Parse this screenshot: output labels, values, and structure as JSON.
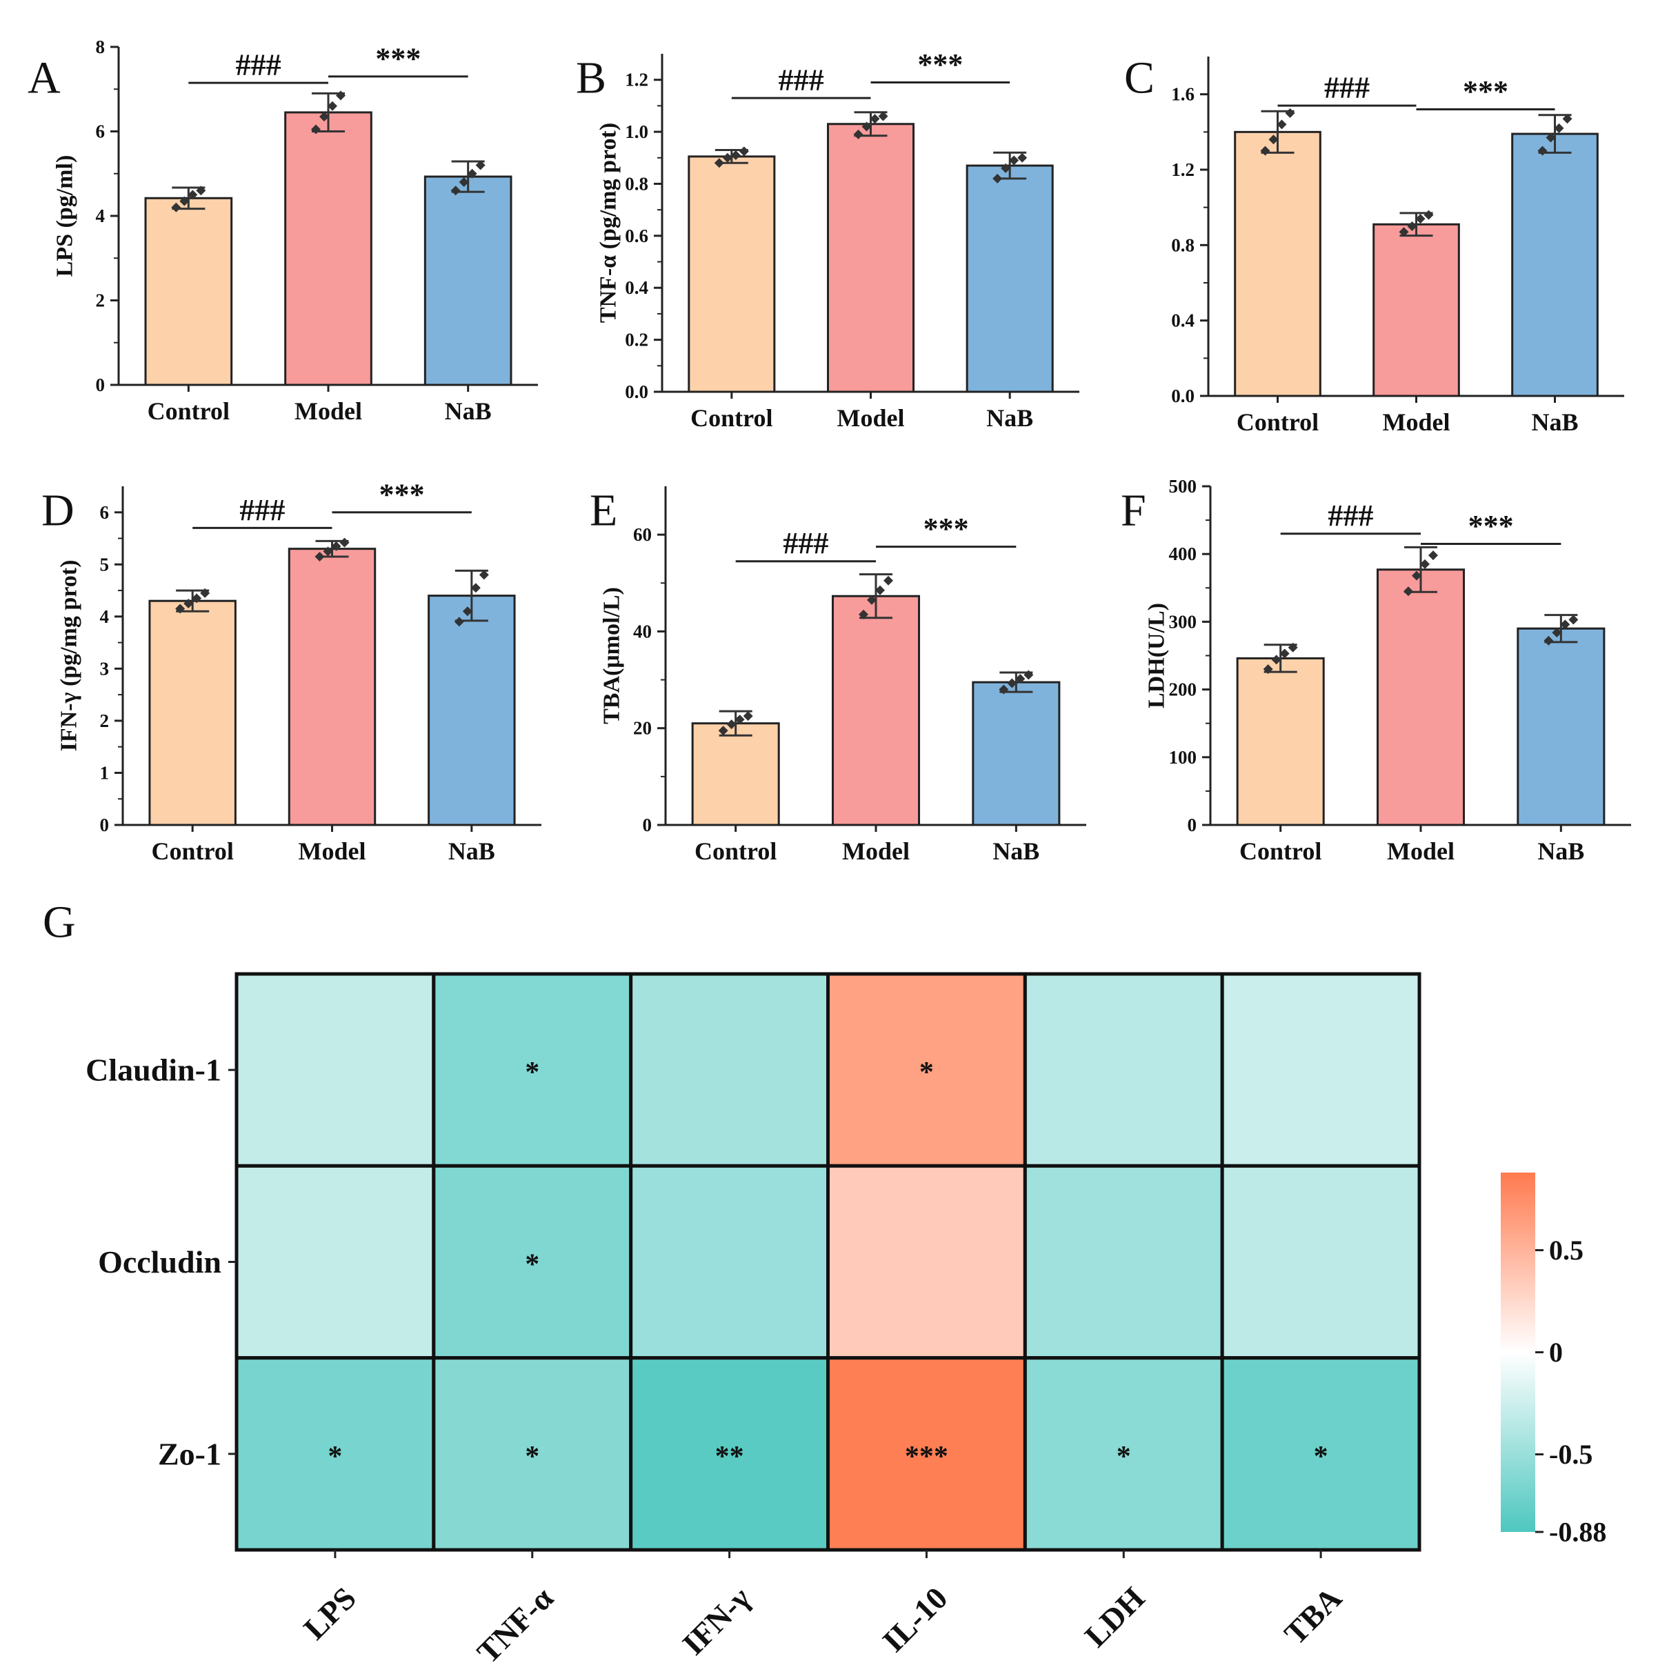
{
  "colors": {
    "control": "#fdd1aa",
    "model": "#f89b9b",
    "nab": "#7fb3dc",
    "outline": "#222222",
    "heat_negative": "#4ec7bf",
    "heat_zero": "#ffffff",
    "heat_positive": "#ff7a4f"
  },
  "chart_data": [
    {
      "panel": "A",
      "type": "bar",
      "categories": [
        "Control",
        "Model",
        "NaB"
      ],
      "values": [
        4.42,
        6.45,
        4.93
      ],
      "errors": [
        0.25,
        0.45,
        0.36
      ],
      "points": [
        [
          4.2,
          4.35,
          4.5,
          4.6
        ],
        [
          6.05,
          6.35,
          6.6,
          6.85
        ],
        [
          4.6,
          4.8,
          5.0,
          5.2
        ]
      ],
      "ylabel": "LPS (pg/ml)",
      "ylim": [
        0,
        8
      ],
      "yticks": [
        "0",
        "2",
        "4",
        "6",
        "8"
      ],
      "comparisons": [
        {
          "from": 0,
          "to": 1,
          "label": "###",
          "y": 7.15
        },
        {
          "from": 1,
          "to": 2,
          "label": "***",
          "y": 7.3
        }
      ]
    },
    {
      "panel": "B",
      "type": "bar",
      "categories": [
        "Control",
        "Model",
        "NaB"
      ],
      "values": [
        0.905,
        1.03,
        0.87
      ],
      "errors": [
        0.025,
        0.045,
        0.05
      ],
      "points": [
        [
          0.88,
          0.9,
          0.91,
          0.925
        ],
        [
          0.99,
          1.02,
          1.05,
          1.06
        ],
        [
          0.82,
          0.86,
          0.89,
          0.9
        ]
      ],
      "ylabel": "TNF-α (pg/mg prot)",
      "ylim": [
        0,
        1.3
      ],
      "yticks": [
        "0.0",
        "0.2",
        "0.4",
        "0.6",
        "0.8",
        "1.0",
        "1.2"
      ],
      "comparisons": [
        {
          "from": 0,
          "to": 1,
          "label": "###",
          "y": 1.13
        },
        {
          "from": 1,
          "to": 2,
          "label": "***",
          "y": 1.19
        }
      ]
    },
    {
      "panel": "C",
      "type": "bar",
      "categories": [
        "Control",
        "Model",
        "NaB"
      ],
      "values": [
        1.4,
        0.91,
        1.39
      ],
      "errors": [
        0.11,
        0.06,
        0.1
      ],
      "points": [
        [
          1.3,
          1.36,
          1.44,
          1.5
        ],
        [
          0.87,
          0.9,
          0.94,
          0.96
        ],
        [
          1.3,
          1.37,
          1.42,
          1.47
        ]
      ],
      "ylabel": "",
      "ylim": [
        0,
        1.8
      ],
      "yticks": [
        "0.0",
        "0.4",
        "0.8",
        "1.2",
        "1.6"
      ],
      "comparisons": [
        {
          "from": 0,
          "to": 1,
          "label": "###",
          "y": 1.54
        },
        {
          "from": 1,
          "to": 2,
          "label": "***",
          "y": 1.52
        }
      ]
    },
    {
      "panel": "D",
      "type": "bar",
      "categories": [
        "Control",
        "Model",
        "NaB"
      ],
      "values": [
        4.3,
        5.3,
        4.4
      ],
      "errors": [
        0.2,
        0.15,
        0.48
      ],
      "points": [
        [
          4.15,
          4.25,
          4.35,
          4.45
        ],
        [
          5.15,
          5.25,
          5.35,
          5.42
        ],
        [
          3.9,
          4.1,
          4.55,
          4.8
        ]
      ],
      "ylabel": "IFN-γ (pg/mg prot)",
      "ylim": [
        0,
        6.5
      ],
      "yticks": [
        "0",
        "1",
        "2",
        "3",
        "4",
        "5",
        "6"
      ],
      "comparisons": [
        {
          "from": 0,
          "to": 1,
          "label": "###",
          "y": 5.7
        },
        {
          "from": 1,
          "to": 2,
          "label": "***",
          "y": 6.0
        }
      ]
    },
    {
      "panel": "E",
      "type": "bar",
      "categories": [
        "Control",
        "Model",
        "NaB"
      ],
      "values": [
        21,
        47.3,
        29.5
      ],
      "errors": [
        2.5,
        4.5,
        2.0
      ],
      "points": [
        [
          19.5,
          20.8,
          21.8,
          22.5
        ],
        [
          43.5,
          46.5,
          48.5,
          50.5
        ],
        [
          28,
          29.3,
          30.2,
          31
        ]
      ],
      "ylabel": "TBA(μmol/L)",
      "ylim": [
        0,
        70
      ],
      "yticks": [
        "0",
        "20",
        "40",
        "60"
      ],
      "comparisons": [
        {
          "from": 0,
          "to": 1,
          "label": "###",
          "y": 54.5
        },
        {
          "from": 1,
          "to": 2,
          "label": "***",
          "y": 57.5
        }
      ]
    },
    {
      "panel": "F",
      "type": "bar",
      "categories": [
        "Control",
        "Model",
        "NaB"
      ],
      "values": [
        246,
        377,
        290
      ],
      "errors": [
        20,
        33,
        20
      ],
      "points": [
        [
          230,
          244,
          253,
          262
        ],
        [
          345,
          368,
          385,
          398
        ],
        [
          272,
          284,
          296,
          303
        ]
      ],
      "ylabel": "LDH(U/L)",
      "ylim": [
        0,
        500
      ],
      "yticks": [
        "0",
        "100",
        "200",
        "300",
        "400",
        "500"
      ],
      "comparisons": [
        {
          "from": 0,
          "to": 1,
          "label": "###",
          "y": 430
        },
        {
          "from": 1,
          "to": 2,
          "label": "***",
          "y": 415
        }
      ]
    },
    {
      "panel": "G",
      "type": "heatmap",
      "rows": [
        "Claudin-1",
        "Occludin",
        "Zo-1"
      ],
      "columns": [
        "LPS",
        "TNF-α",
        "IFN-γ",
        "IL-10",
        "LDH",
        "TBA"
      ],
      "values": [
        [
          -0.3,
          -0.62,
          -0.45,
          0.62,
          -0.35,
          -0.27
        ],
        [
          -0.3,
          -0.63,
          -0.5,
          0.35,
          -0.47,
          -0.33
        ],
        [
          -0.67,
          -0.6,
          -0.82,
          0.85,
          -0.58,
          -0.73
        ]
      ],
      "annotations": [
        [
          "",
          "*",
          "",
          "*",
          "",
          ""
        ],
        [
          "",
          "*",
          "",
          "",
          "",
          ""
        ],
        [
          "*",
          "*",
          "**",
          "***",
          "*",
          "*"
        ]
      ],
      "colorbar": {
        "min": -0.88,
        "max": 0.88,
        "ticks": [
          0.5,
          0,
          -0.5,
          -0.88
        ],
        "tick_labels": [
          "0.5",
          "0",
          "-0.5",
          "-0.88"
        ]
      }
    }
  ]
}
